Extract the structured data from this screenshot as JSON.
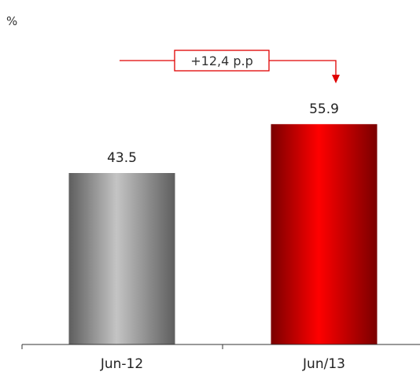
{
  "chart_data": {
    "type": "bar",
    "unit": "%",
    "categories": [
      "Jun-12",
      "Jun/13"
    ],
    "values": [
      43.5,
      55.9
    ],
    "value_labels": [
      "43.5",
      "55.9"
    ],
    "annotation": "+12,4 p.p",
    "colors": {
      "bar_1": "#8c8c8c",
      "bar_2": "#ff0000",
      "annotation": "#e00000"
    },
    "grid": false,
    "legend": "none"
  }
}
